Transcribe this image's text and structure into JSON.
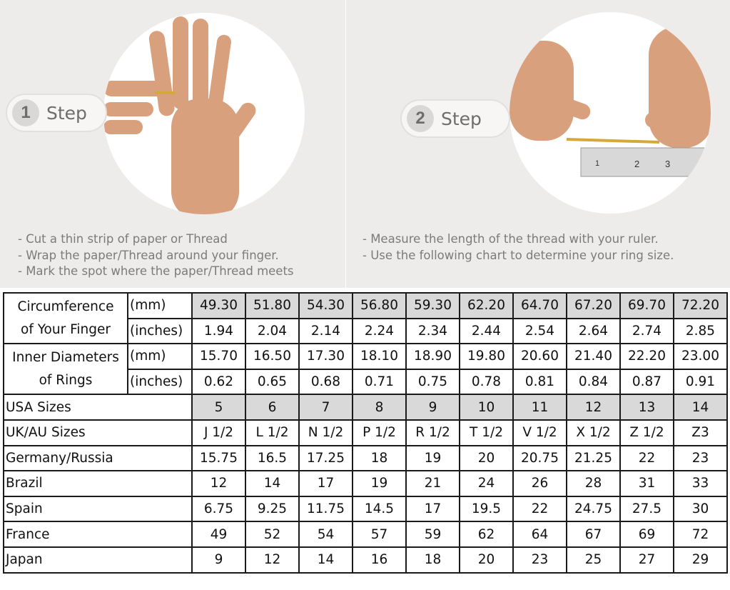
{
  "steps": [
    {
      "number": "1",
      "label": "Step",
      "instructions": [
        "- Cut a thin strip of paper or Thread",
        "- Wrap the paper/Thread around your finger.",
        "- Mark the spot where the paper/Thread meets"
      ]
    },
    {
      "number": "2",
      "label": "Step",
      "instructions": [
        "- Measure the length of the thread with your ruler.",
        "- Use the following chart to determine your ring size."
      ]
    }
  ],
  "ruler_labels": [
    "1",
    "2",
    "3"
  ],
  "table": {
    "circumference": {
      "label_line1": "Circumference",
      "label_line2": "of Your Finger",
      "unit_mm": "(mm)",
      "unit_in": "(inches)",
      "mm": [
        "49.30",
        "51.80",
        "54.30",
        "56.80",
        "59.30",
        "62.20",
        "64.70",
        "67.20",
        "69.70",
        "72.20"
      ],
      "inches": [
        "1.94",
        "2.04",
        "2.14",
        "2.24",
        "2.34",
        "2.44",
        "2.54",
        "2.64",
        "2.74",
        "2.85"
      ]
    },
    "inner_diameter": {
      "label_line1": "Inner Diameters",
      "label_line2": "of Rings",
      "unit_mm": "(mm)",
      "unit_in": "(inches)",
      "mm": [
        "15.70",
        "16.50",
        "17.30",
        "18.10",
        "18.90",
        "19.80",
        "20.60",
        "21.40",
        "22.20",
        "23.00"
      ],
      "inches": [
        "0.62",
        "0.65",
        "0.68",
        "0.71",
        "0.75",
        "0.78",
        "0.81",
        "0.84",
        "0.87",
        "0.91"
      ]
    },
    "rows": [
      {
        "label": "USA Sizes",
        "values": [
          "5",
          "6",
          "7",
          "8",
          "9",
          "10",
          "11",
          "12",
          "13",
          "14"
        ],
        "shaded": true
      },
      {
        "label": "UK/AU Sizes",
        "values": [
          "J 1/2",
          "L 1/2",
          "N 1/2",
          "P 1/2",
          "R 1/2",
          "T 1/2",
          "V 1/2",
          "X 1/2",
          "Z 1/2",
          "Z3"
        ]
      },
      {
        "label": "Germany/Russia",
        "values": [
          "15.75",
          "16.5",
          "17.25",
          "18",
          "19",
          "20",
          "20.75",
          "21.25",
          "22",
          "23"
        ]
      },
      {
        "label": "Brazil",
        "values": [
          "12",
          "14",
          "17",
          "19",
          "21",
          "24",
          "26",
          "28",
          "31",
          "33"
        ]
      },
      {
        "label": "Spain",
        "values": [
          "6.75",
          "9.25",
          "11.75",
          "14.5",
          "17",
          "19.5",
          "22",
          "24.75",
          "27.5",
          "30"
        ]
      },
      {
        "label": "France",
        "values": [
          "49",
          "52",
          "54",
          "57",
          "59",
          "62",
          "64",
          "67",
          "69",
          "72"
        ]
      },
      {
        "label": "Japan",
        "values": [
          "9",
          "12",
          "14",
          "16",
          "18",
          "20",
          "23",
          "25",
          "27",
          "29"
        ]
      }
    ]
  },
  "colors": {
    "shade": "#d9d9d9",
    "panel_bg": "#eeecea",
    "skin": "#d9a07e"
  }
}
